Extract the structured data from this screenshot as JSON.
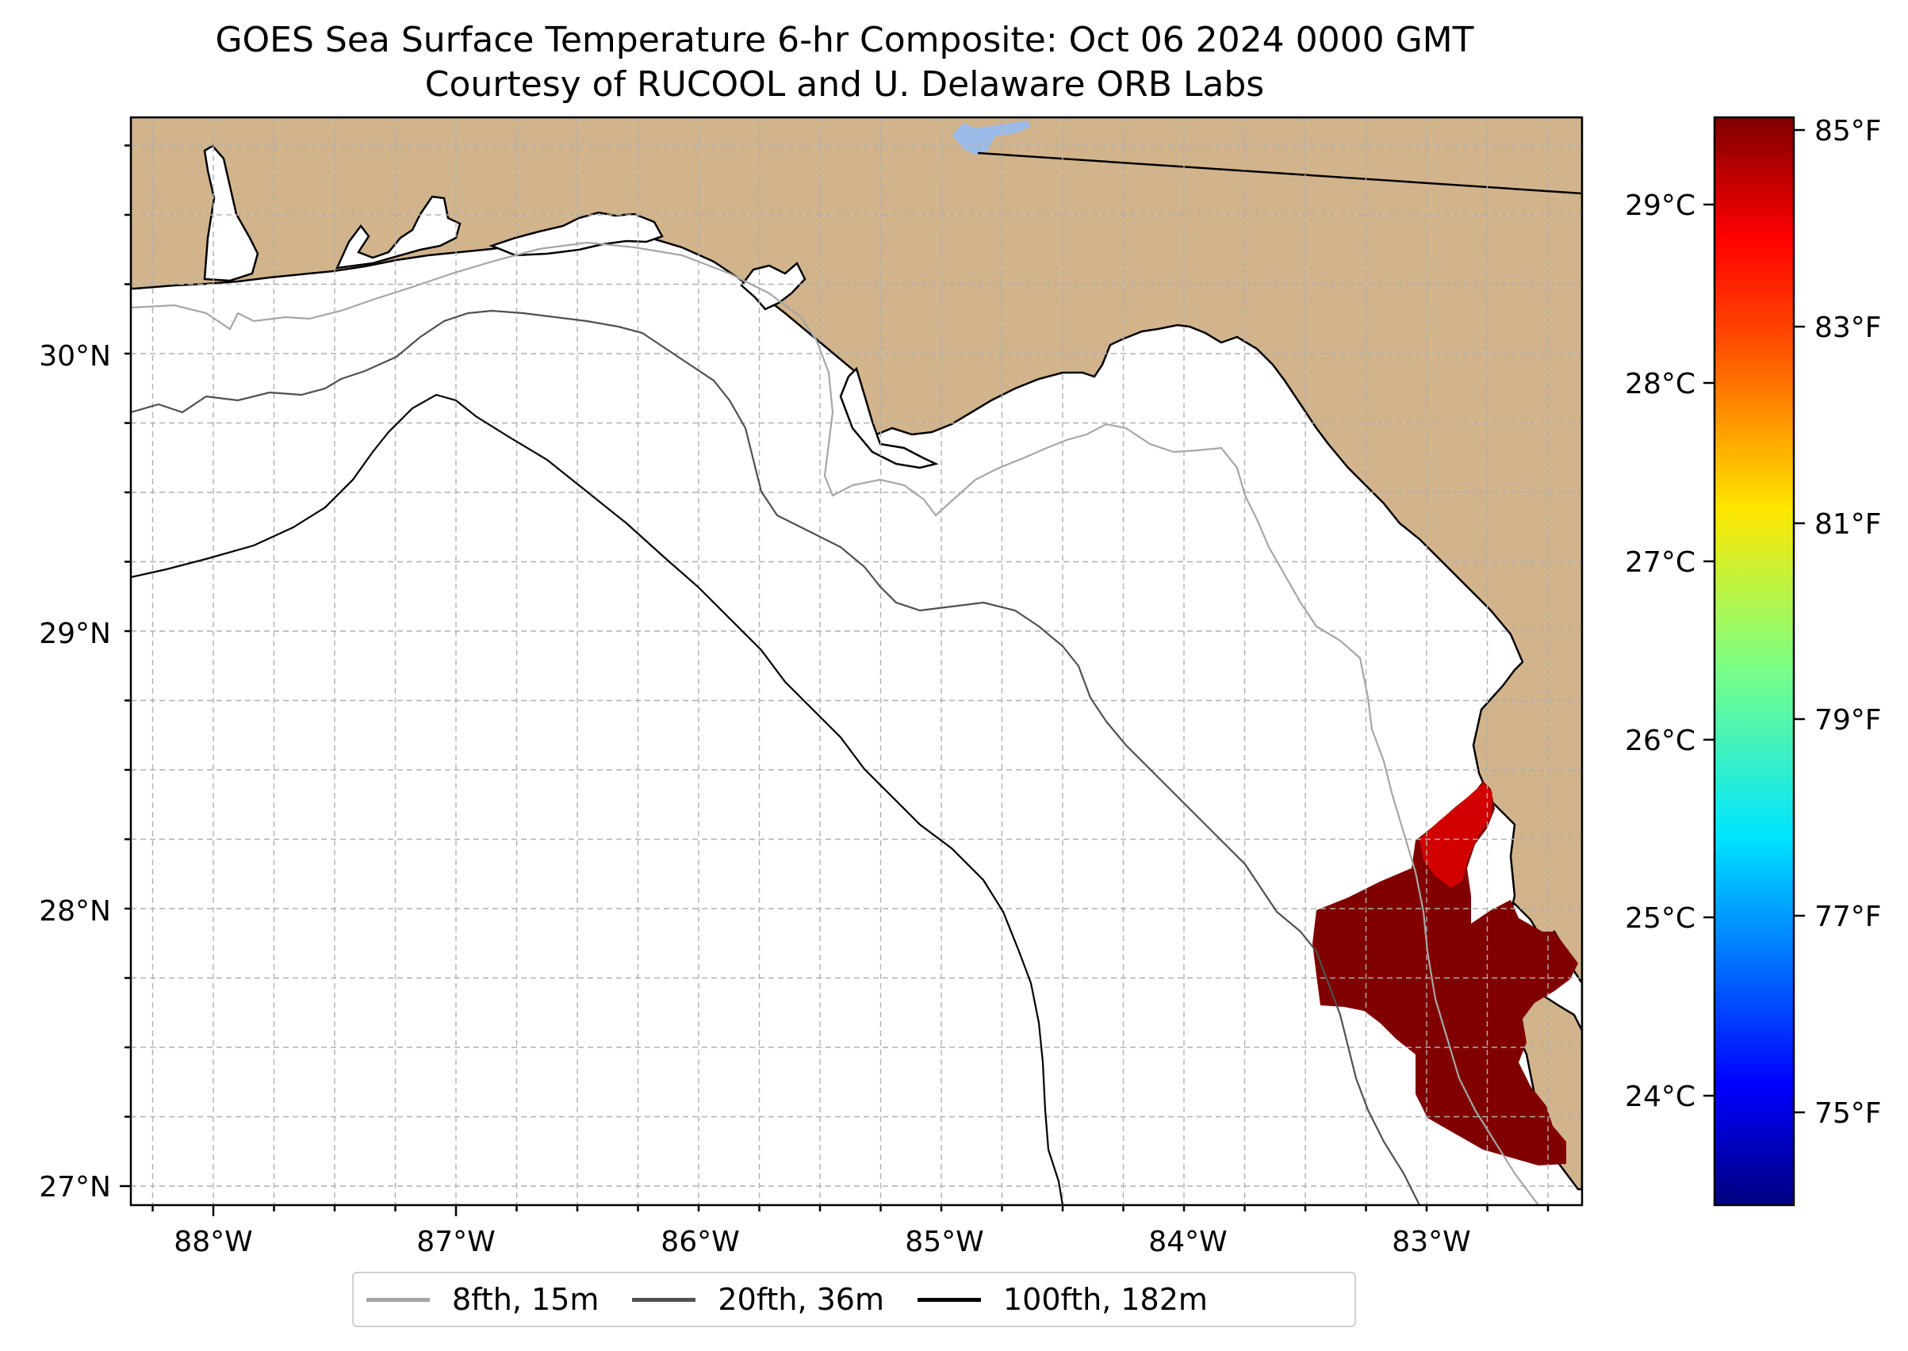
{
  "title": {
    "line1": "GOES Sea Surface Temperature 6-hr Composite: Oct 06 2024 0000 GMT",
    "line2": "Courtesy of RUCOOL and U. Delaware ORB Labs"
  },
  "axes": {
    "lon_labels": [
      "88°W",
      "87°W",
      "86°W",
      "85°W",
      "84°W",
      "83°W"
    ],
    "lat_labels": [
      "30°N",
      "29°N",
      "28°N",
      "27°N"
    ]
  },
  "colors": {
    "land": "#d2b48c",
    "ocean": "#ffffff",
    "lake": "#9dbbe8",
    "sst_warm": "#800000",
    "isobath_8fth": "#a6a6a6",
    "isobath_20fth": "#505050",
    "isobath_100fth": "#000000"
  },
  "legend": [
    {
      "label": "8fth, 15m",
      "color": "#a6a6a6"
    },
    {
      "label": "20fth, 36m",
      "color": "#505050"
    },
    {
      "label": "100fth, 182m",
      "color": "#000000"
    }
  ],
  "colorbar": {
    "colormap": "jet",
    "celsius_labels": [
      "29°C",
      "28°C",
      "27°C",
      "26°C",
      "25°C",
      "24°C"
    ],
    "fahrenheit_labels": [
      "85°F",
      "83°F",
      "81°F",
      "79°F",
      "77°F",
      "75°F"
    ]
  }
}
